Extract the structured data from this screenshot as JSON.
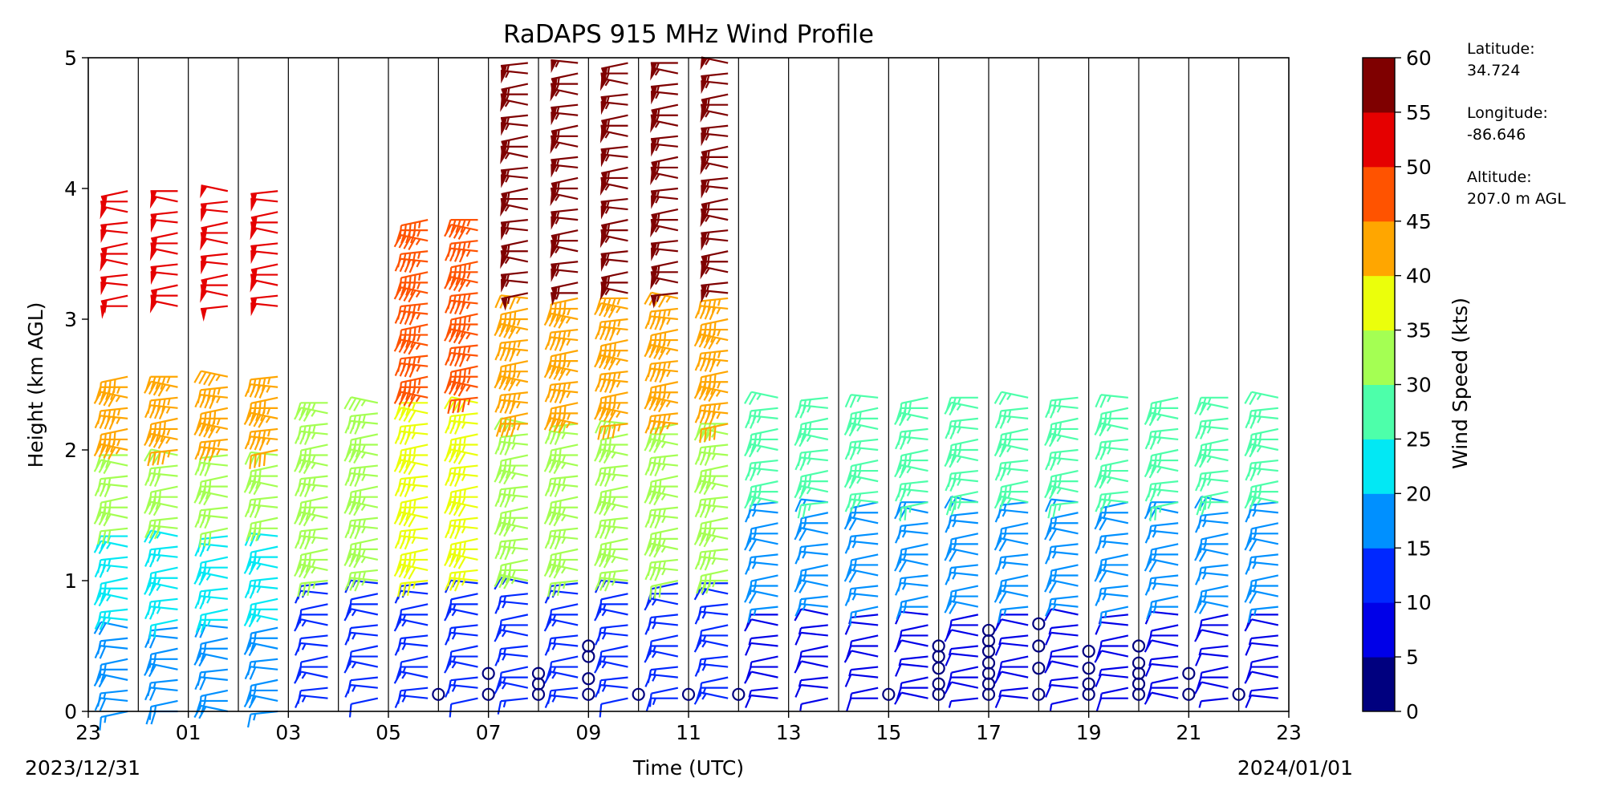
{
  "chart_data": {
    "type": "wind-barb profile",
    "title": "RaDAPS 915 MHz Wind Profile",
    "xlabel": "Time (UTC)",
    "ylabel": "Height (km AGL)",
    "date_start": "2023/12/31",
    "date_end": "2024/01/01",
    "x_ticks": [
      "23",
      "01",
      "03",
      "05",
      "07",
      "09",
      "11",
      "13",
      "15",
      "17",
      "19",
      "21",
      "23"
    ],
    "xlim_hours": [
      0,
      24
    ],
    "ylim": [
      0,
      5
    ],
    "y_ticks": [
      "0",
      "1",
      "2",
      "3",
      "4",
      "5"
    ],
    "grid": "vertical lines every hour",
    "colorbar": {
      "label": "Wind Speed (kts)",
      "ticks": [
        "0",
        "5",
        "10",
        "15",
        "20",
        "25",
        "30",
        "35",
        "40",
        "45",
        "50",
        "55",
        "60"
      ],
      "colors": [
        "#00007f",
        "#0000e8",
        "#0028ff",
        "#0090ff",
        "#02e8f4",
        "#4dffaa",
        "#a4ff53",
        "#ebff0b",
        "#ffa600",
        "#ff5300",
        "#e50000",
        "#7f0000"
      ]
    },
    "site_info": {
      "lat_label": "Latitude:",
      "lat_value": "34.724",
      "lon_label": "Longitude:",
      "lon_value": "-86.646",
      "alt_label": "Altitude:",
      "alt_value": "207.0 m AGL"
    },
    "profile_times_hours": [
      0.5,
      1.5,
      2.5,
      3.5,
      4.5,
      5.5,
      6.5,
      7.5,
      8.5,
      9.5,
      10.5,
      11.5,
      12.5,
      13.5,
      14.5,
      15.5,
      16.5,
      17.5,
      18.5,
      19.5,
      20.5,
      21.5,
      22.5,
      23.5
    ],
    "speed_layers_kts": [
      {
        "hours": [
          0.5,
          3.5
        ],
        "km": [
          0.0,
          0.7
        ],
        "speed": 18
      },
      {
        "hours": [
          0.5,
          3.5
        ],
        "km": [
          0.7,
          1.4
        ],
        "speed": 24
      },
      {
        "hours": [
          0.5,
          3.5
        ],
        "km": [
          1.4,
          2.0
        ],
        "speed": 30
      },
      {
        "hours": [
          0.5,
          3.5
        ],
        "km": [
          2.0,
          2.6
        ],
        "speed": 44
      },
      {
        "hours": [
          0.5,
          3.5
        ],
        "km": [
          3.1,
          4.0
        ],
        "speed": 50
      },
      {
        "hours": [
          4.5,
          5.5
        ],
        "km": [
          0.1,
          1.0
        ],
        "speed": 12
      },
      {
        "hours": [
          4.5,
          5.5
        ],
        "km": [
          1.0,
          2.4
        ],
        "speed": 34
      },
      {
        "hours": [
          6.5,
          7.5
        ],
        "km": [
          0.1,
          1.0
        ],
        "speed": 14
      },
      {
        "hours": [
          6.5,
          7.5
        ],
        "km": [
          1.0,
          2.4
        ],
        "speed": 36
      },
      {
        "hours": [
          6.5,
          7.5
        ],
        "km": [
          2.4,
          3.8
        ],
        "speed": 45
      },
      {
        "hours": [
          8.5,
          12.5
        ],
        "km": [
          0.1,
          1.0
        ],
        "speed": 14
      },
      {
        "hours": [
          8.5,
          12.5
        ],
        "km": [
          1.0,
          2.2
        ],
        "speed": 34
      },
      {
        "hours": [
          8.5,
          12.5
        ],
        "km": [
          2.2,
          3.2
        ],
        "speed": 44
      },
      {
        "hours": [
          8.5,
          12.5
        ],
        "km": [
          3.2,
          5.0
        ],
        "speed": 55
      },
      {
        "hours": [
          13.5,
          23.5
        ],
        "km": [
          0.1,
          0.8
        ],
        "speed": 8
      },
      {
        "hours": [
          13.5,
          23.5
        ],
        "km": [
          0.8,
          1.6
        ],
        "speed": 16
      },
      {
        "hours": [
          13.5,
          23.5
        ],
        "km": [
          1.6,
          2.4
        ],
        "speed": 25
      }
    ],
    "calm_markers": [
      {
        "hour": 7.0,
        "km": [
          0.13
        ]
      },
      {
        "hour": 8.0,
        "km": [
          0.13,
          0.29
        ]
      },
      {
        "hour": 9.0,
        "km": [
          0.13,
          0.21,
          0.29
        ]
      },
      {
        "hour": 10.0,
        "km": [
          0.13,
          0.25,
          0.42,
          0.5
        ]
      },
      {
        "hour": 11.0,
        "km": [
          0.13
        ]
      },
      {
        "hour": 12.0,
        "km": [
          0.13
        ]
      },
      {
        "hour": 13.0,
        "km": [
          0.13
        ]
      },
      {
        "hour": 16.0,
        "km": [
          0.13
        ]
      },
      {
        "hour": 17.0,
        "km": [
          0.13,
          0.21,
          0.33,
          0.42,
          0.5
        ]
      },
      {
        "hour": 18.0,
        "km": [
          0.13,
          0.21,
          0.29,
          0.37,
          0.46,
          0.54,
          0.62
        ]
      },
      {
        "hour": 19.0,
        "km": [
          0.13,
          0.33,
          0.5,
          0.67
        ]
      },
      {
        "hour": 20.0,
        "km": [
          0.13,
          0.21,
          0.33,
          0.46
        ]
      },
      {
        "hour": 21.0,
        "km": [
          0.13,
          0.21,
          0.29,
          0.37,
          0.5
        ]
      },
      {
        "hour": 22.0,
        "km": [
          0.13,
          0.29
        ]
      },
      {
        "hour": 23.0,
        "km": [
          0.13
        ]
      }
    ]
  }
}
